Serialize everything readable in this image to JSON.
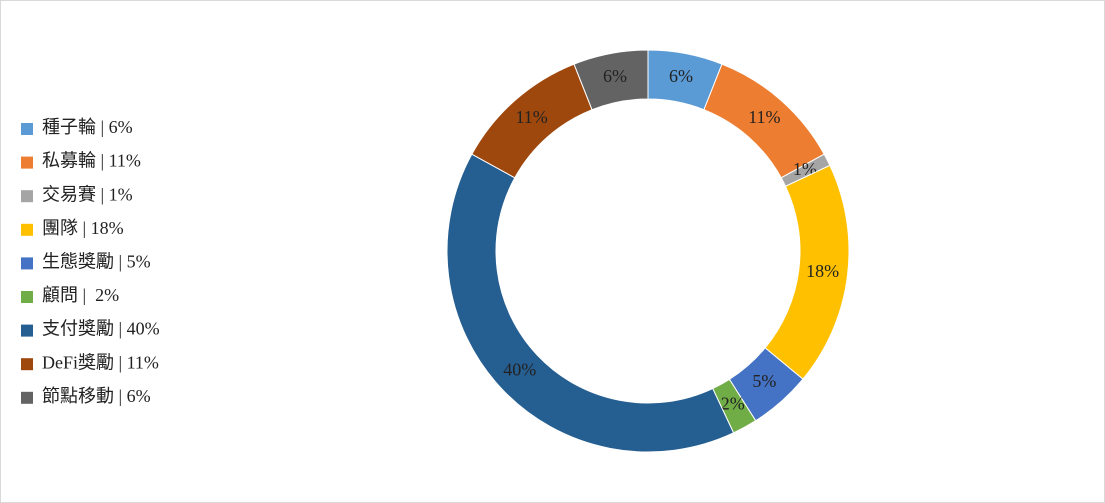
{
  "chart_data": {
    "type": "donut",
    "categories": [
      "種子輪 | 6%",
      "私募輪 | 11%",
      "交易賽 | 1%",
      "團隊 | 18%",
      "生態獎勵 | 5%",
      "顧問 |  2%",
      "支付獎勵 | 40%",
      "DeFi獎勵 | 11%",
      "節點移動 | 6%"
    ],
    "values": [
      6,
      11,
      1,
      18,
      5,
      2,
      40,
      11,
      6
    ],
    "value_labels": [
      "6%",
      "11%",
      "1%",
      "18%",
      "5%",
      "2%",
      "40%",
      "11%",
      "6%"
    ],
    "colors": [
      "#5b9bd5",
      "#ed7d31",
      "#a5a5a5",
      "#ffc000",
      "#4472c4",
      "#70ad47",
      "#255e91",
      "#9e480e",
      "#636363"
    ],
    "legend": "left"
  }
}
